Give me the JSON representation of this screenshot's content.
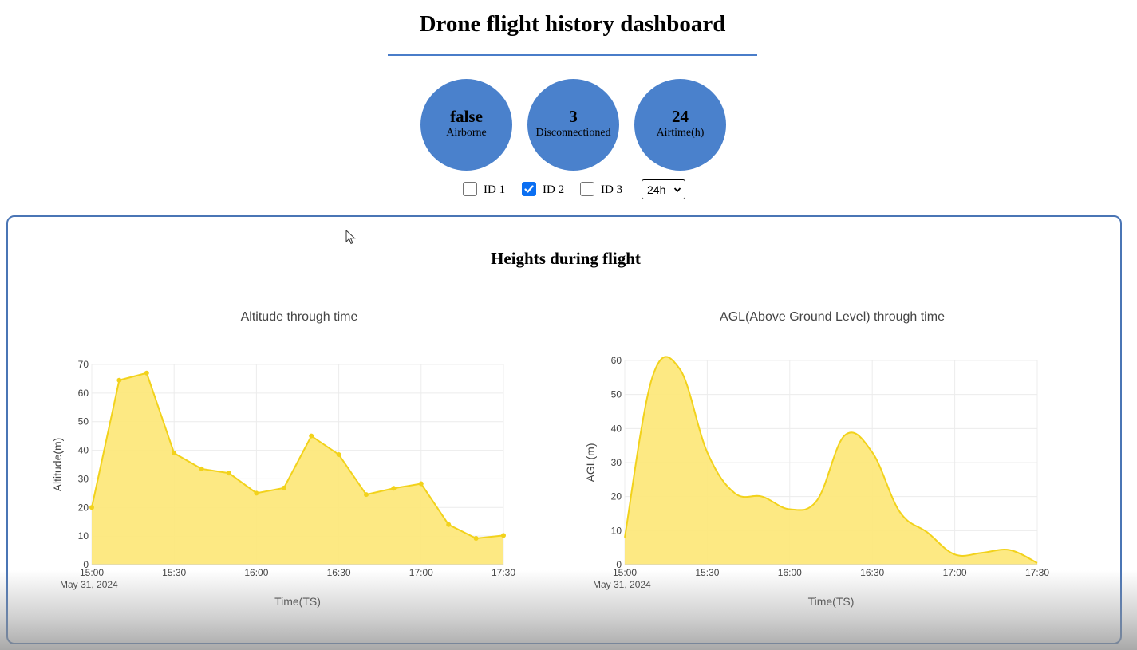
{
  "page": {
    "title": "Drone flight history dashboard"
  },
  "stats": [
    {
      "value": "false",
      "label": "Airborne"
    },
    {
      "value": "3",
      "label": "Disconnectioned"
    },
    {
      "value": "24",
      "label": "Airtime(h)"
    }
  ],
  "filters": {
    "ids": [
      {
        "label": "ID 1",
        "checked": false
      },
      {
        "label": "ID 2",
        "checked": true
      },
      {
        "label": "ID 3",
        "checked": false
      }
    ],
    "range_select": "24h"
  },
  "panel": {
    "title": "Heights during flight"
  },
  "colors": {
    "accent": "#4a81cc",
    "series_line": "#f2d21b",
    "series_fill": "#fde87c",
    "checkbox_checked": "#0b6ff2"
  },
  "chart_data": [
    {
      "type": "area",
      "title": "Altitude through time",
      "xlabel": "Time(TS)",
      "ylabel": "Altitude(m)",
      "x_ticks": [
        "15:00",
        "15:30",
        "16:00",
        "16:30",
        "17:00",
        "17:30"
      ],
      "x_tick_sub": "May 31, 2024",
      "xlim": [
        "15:00",
        "17:30"
      ],
      "ylim": [
        0,
        70
      ],
      "y_ticks": [
        0,
        10,
        20,
        30,
        40,
        50,
        60,
        70
      ],
      "grid": true,
      "markers": true,
      "smooth": false,
      "x": [
        "15:00",
        "15:10",
        "15:20",
        "15:30",
        "15:40",
        "15:50",
        "16:00",
        "16:10",
        "16:20",
        "16:30",
        "16:40",
        "16:50",
        "17:00",
        "17:10",
        "17:20",
        "17:30"
      ],
      "values": [
        20,
        64.5,
        67,
        39,
        33.5,
        32,
        25,
        26.8,
        45,
        38.5,
        24.5,
        26.7,
        28.3,
        14,
        9.2,
        10.2
      ]
    },
    {
      "type": "area",
      "title": "AGL(Above Ground Level) through time",
      "xlabel": "Time(TS)",
      "ylabel": "AGL(m)",
      "x_ticks": [
        "15:00",
        "15:30",
        "16:00",
        "16:30",
        "17:00",
        "17:30"
      ],
      "x_tick_sub": "May 31, 2024",
      "xlim": [
        "15:00",
        "17:30"
      ],
      "ylim": [
        0,
        60
      ],
      "y_ticks": [
        0,
        10,
        20,
        30,
        40,
        50,
        60
      ],
      "grid": true,
      "markers": false,
      "smooth": true,
      "x": [
        "15:00",
        "15:10",
        "15:20",
        "15:30",
        "15:40",
        "15:50",
        "16:00",
        "16:10",
        "16:20",
        "16:30",
        "16:40",
        "16:50",
        "17:00",
        "17:10",
        "17:20",
        "17:30"
      ],
      "values": [
        8,
        55,
        57.5,
        33,
        21,
        20,
        16.3,
        19,
        38,
        33,
        15.5,
        9.5,
        3,
        3.5,
        4.3,
        0.5
      ]
    }
  ]
}
